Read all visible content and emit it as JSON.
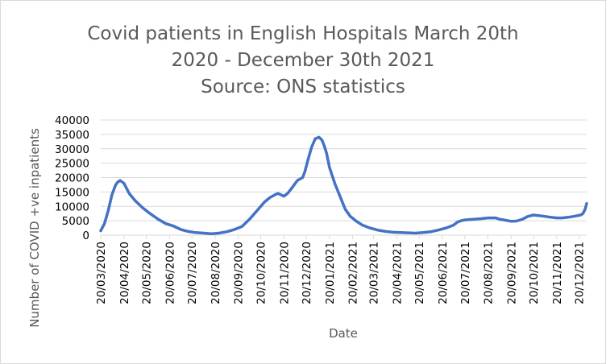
{
  "chart_data": {
    "type": "line",
    "title_lines": [
      "Covid patients in English Hospitals March 20th",
      "2020 - December 30th 2021",
      "Source: ONS statistics"
    ],
    "xlabel": "Date",
    "ylabel": "Number of COVID +ve inpatients",
    "ylim": [
      0,
      40000
    ],
    "y_ticks": [
      "0",
      "5000",
      "10000",
      "15000",
      "20000",
      "25000",
      "30000",
      "35000",
      "40000"
    ],
    "x_ticks": [
      "20/03/2020",
      "20/04/2020",
      "20/05/2020",
      "20/06/2020",
      "20/07/2020",
      "20/08/2020",
      "20/09/2020",
      "20/10/2020",
      "20/11/2020",
      "20/12/2020",
      "20/01/2021",
      "20/02/2021",
      "20/03/2021",
      "20/04/2021",
      "20/05/2021",
      "20/06/2021",
      "20/07/2021",
      "20/08/2021",
      "20/09/2021",
      "20/10/2021",
      "20/11/2021",
      "20/12/2021"
    ],
    "xlim": [
      "2020-03-20",
      "2021-12-30"
    ],
    "gridlines": true,
    "legend": "none",
    "series": [
      {
        "color": "#4472c4",
        "x": [
          "2020-03-20",
          "2020-03-25",
          "2020-03-30",
          "2020-04-04",
          "2020-04-09",
          "2020-04-12",
          "2020-04-15",
          "2020-04-20",
          "2020-04-27",
          "2020-05-05",
          "2020-05-15",
          "2020-05-25",
          "2020-06-05",
          "2020-06-15",
          "2020-06-25",
          "2020-07-05",
          "2020-07-15",
          "2020-07-25",
          "2020-08-05",
          "2020-08-15",
          "2020-08-25",
          "2020-09-05",
          "2020-09-15",
          "2020-09-25",
          "2020-10-05",
          "2020-10-15",
          "2020-10-25",
          "2020-11-01",
          "2020-11-08",
          "2020-11-12",
          "2020-11-16",
          "2020-11-20",
          "2020-11-25",
          "2020-12-01",
          "2020-12-08",
          "2020-12-15",
          "2020-12-18",
          "2020-12-22",
          "2020-12-27",
          "2021-01-01",
          "2021-01-06",
          "2021-01-10",
          "2021-01-13",
          "2021-01-16",
          "2021-01-20",
          "2021-01-27",
          "2021-02-03",
          "2021-02-10",
          "2021-02-17",
          "2021-02-25",
          "2021-03-05",
          "2021-03-15",
          "2021-03-25",
          "2021-04-05",
          "2021-04-15",
          "2021-04-25",
          "2021-05-05",
          "2021-05-15",
          "2021-05-25",
          "2021-06-05",
          "2021-06-15",
          "2021-06-25",
          "2021-07-05",
          "2021-07-10",
          "2021-07-15",
          "2021-07-20",
          "2021-07-25",
          "2021-08-01",
          "2021-08-10",
          "2021-08-20",
          "2021-08-30",
          "2021-09-05",
          "2021-09-12",
          "2021-09-20",
          "2021-09-27",
          "2021-10-05",
          "2021-10-12",
          "2021-10-20",
          "2021-10-27",
          "2021-11-05",
          "2021-11-12",
          "2021-11-20",
          "2021-11-27",
          "2021-12-05",
          "2021-12-12",
          "2021-12-18",
          "2021-12-22",
          "2021-12-25",
          "2021-12-28",
          "2021-12-30"
        ],
        "y": [
          1500,
          4000,
          8500,
          14000,
          17500,
          18500,
          19000,
          18000,
          14500,
          12000,
          9500,
          7500,
          5500,
          4000,
          3200,
          2000,
          1300,
          900,
          700,
          500,
          700,
          1200,
          2000,
          3000,
          5500,
          8500,
          11500,
          13000,
          14000,
          14500,
          14000,
          13500,
          14500,
          16500,
          19000,
          20000,
          22000,
          26000,
          30500,
          33500,
          34000,
          33000,
          31000,
          28500,
          23500,
          18000,
          13500,
          9000,
          6500,
          4800,
          3500,
          2500,
          1800,
          1300,
          1000,
          900,
          800,
          700,
          900,
          1200,
          1800,
          2500,
          3500,
          4500,
          5000,
          5300,
          5400,
          5500,
          5700,
          6000,
          6000,
          5500,
          5200,
          4800,
          4900,
          5500,
          6500,
          7000,
          6800,
          6500,
          6200,
          6000,
          6000,
          6200,
          6500,
          6800,
          7000,
          7500,
          9000,
          11000
        ]
      }
    ]
  }
}
